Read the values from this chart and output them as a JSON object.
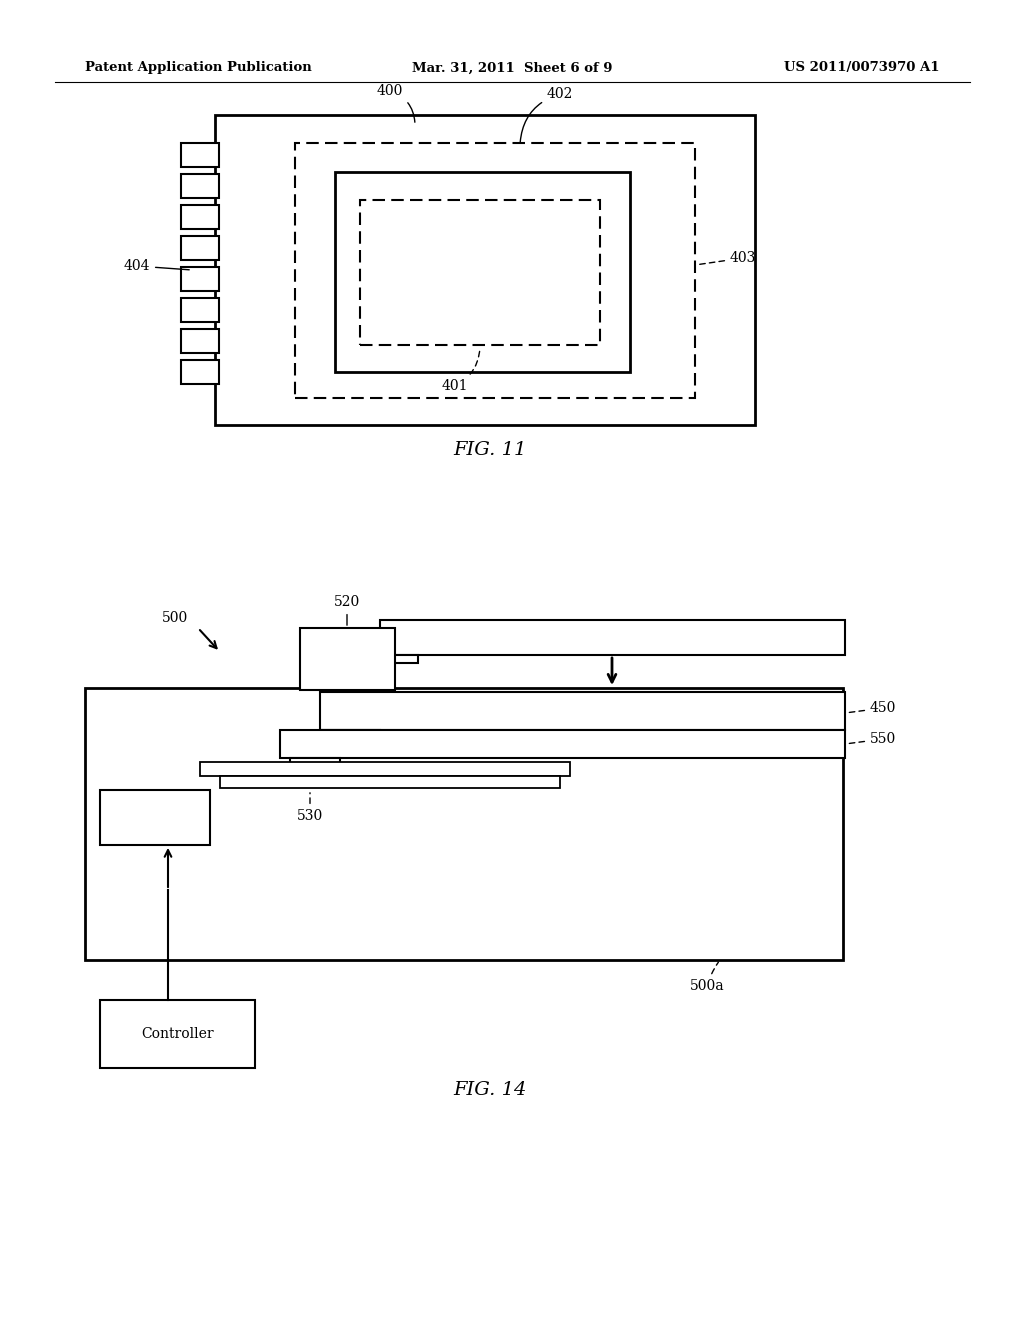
{
  "bg_color": "#ffffff",
  "line_color": "#000000",
  "header_left": "Patent Application Publication",
  "header_center": "Mar. 31, 2011  Sheet 6 of 9",
  "header_right": "US 2011/0073970 A1"
}
